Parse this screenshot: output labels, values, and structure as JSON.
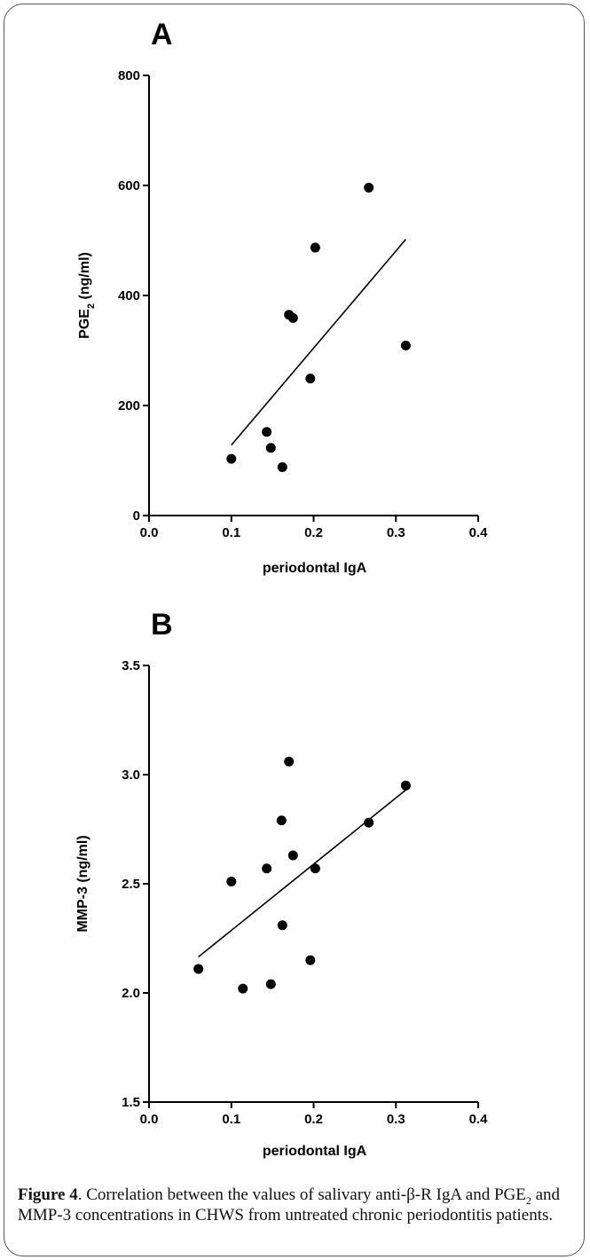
{
  "caption": {
    "label": "Figure 4",
    "part1": ". Correlation between the values of salivary anti-β-R IgA and PGE",
    "sub": "2",
    "part2": " and MMP-3 concentrations in CHWS from untreated chronic periodontitis patients."
  },
  "chart_data": [
    {
      "type": "scatter",
      "panel": "A",
      "xlabel": "periodontal IgA",
      "ylabel_main": "PGE",
      "ylabel_sub": "2",
      "ylabel_rest": " (ng/ml)",
      "xlim": [
        0.0,
        0.4
      ],
      "ylim": [
        0,
        800
      ],
      "xticks": [
        "0.0",
        "0.1",
        "0.2",
        "0.3",
        "0.4"
      ],
      "yticks": [
        "0",
        "200",
        "400",
        "600",
        "800"
      ],
      "x": [
        0.1,
        0.143,
        0.148,
        0.162,
        0.17,
        0.175,
        0.196,
        0.202,
        0.267,
        0.312
      ],
      "y": [
        103,
        152,
        123,
        88,
        365,
        359,
        249,
        487,
        596,
        309
      ],
      "trendline": {
        "x": [
          0.1,
          0.312
        ],
        "y": [
          128,
          502
        ]
      }
    },
    {
      "type": "scatter",
      "panel": "B",
      "xlabel": "periodontal IgA",
      "ylabel_main": "MMP-3 (ng/ml)",
      "ylabel_sub": "",
      "ylabel_rest": "",
      "xlim": [
        0.0,
        0.4
      ],
      "ylim": [
        1.5,
        3.5
      ],
      "xticks": [
        "0.0",
        "0.1",
        "0.2",
        "0.3",
        "0.4"
      ],
      "yticks": [
        "1.5",
        "2.0",
        "2.5",
        "3.0",
        "3.5"
      ],
      "x": [
        0.06,
        0.1,
        0.114,
        0.143,
        0.148,
        0.161,
        0.162,
        0.17,
        0.175,
        0.196,
        0.202,
        0.267,
        0.312
      ],
      "y": [
        2.11,
        2.51,
        2.02,
        2.57,
        2.04,
        2.79,
        2.31,
        3.06,
        2.63,
        2.15,
        2.57,
        2.78,
        2.95
      ],
      "trendline": {
        "x": [
          0.06,
          0.312
        ],
        "y": [
          2.165,
          2.93
        ]
      }
    }
  ]
}
